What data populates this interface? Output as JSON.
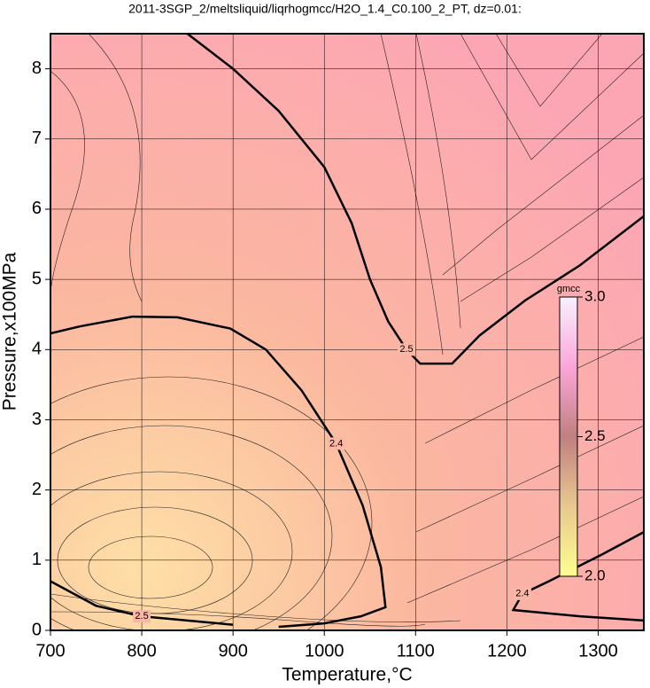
{
  "chart_data": {
    "type": "contour",
    "title": "2011-3SGP_2/meltsliquid/liqrhogmcc/H2O_1.4_C0.100_2_PT, dz=0.01:",
    "x_label": "Temperature,°C",
    "y_label": "Pressure,x100MPa",
    "xlim": [
      700,
      1350
    ],
    "ylim": [
      0,
      8.5
    ],
    "xticks": [
      700,
      800,
      900,
      1000,
      1100,
      1200,
      1300
    ],
    "yticks": [
      0,
      1,
      2,
      3,
      4,
      5,
      6,
      7,
      8
    ],
    "grid": true,
    "contours": [
      {
        "level": 2.5,
        "x": [
          850,
          900,
          950,
          1000,
          1030,
          1050,
          1070,
          1090,
          1105,
          1140,
          1170,
          1220,
          1280,
          1350
        ],
        "y": [
          8.5,
          8.0,
          7.4,
          6.6,
          5.8,
          5.0,
          4.4,
          4.0,
          3.8,
          3.8,
          4.2,
          4.7,
          5.2,
          5.9
        ]
      },
      {
        "level": 2.4,
        "x": [
          700,
          732,
          790,
          839,
          897,
          936,
          975,
          1013,
          1042,
          1062,
          1067,
          1040,
          1000,
          950
        ],
        "y": [
          4.23,
          4.33,
          4.47,
          4.46,
          4.3,
          4.0,
          3.42,
          2.66,
          1.78,
          0.9,
          0.33,
          0.2,
          0.1,
          0.05
        ]
      },
      {
        "level": 2.4,
        "x": [
          1350,
          1304,
          1246,
          1217,
          1207,
          1280,
          1350
        ],
        "y": [
          1.4,
          1.08,
          0.7,
          0.52,
          0.29,
          0.2,
          0.14
        ]
      },
      {
        "level": 2.5,
        "x": [
          700,
          750,
          800,
          900
        ],
        "y": [
          0.7,
          0.35,
          0.2,
          0.08
        ]
      }
    ],
    "colorbar": {
      "label": "gmcc",
      "lim": [
        2.0,
        3.0
      ],
      "ticks": [
        {
          "value": 2.0,
          "label": "2.0"
        },
        2.5,
        {
          "value": 3.0,
          "label": "3.0"
        }
      ]
    }
  }
}
